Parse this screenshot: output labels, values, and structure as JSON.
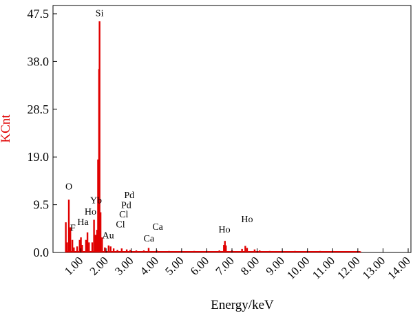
{
  "chart_data": {
    "type": "bar",
    "title": "",
    "xlabel": "Energy/keV",
    "ylabel": "KCnt",
    "xlim": [
      0.0,
      14.0
    ],
    "ylim": [
      0.0,
      47.5
    ],
    "x_ticks": [
      "1.00",
      "2.00",
      "3.00",
      "4.00",
      "5.00",
      "6.00",
      "7.00",
      "8.00",
      "9.00",
      "10.00",
      "11.00",
      "12.00",
      "13.00",
      "14.00"
    ],
    "y_ticks": [
      "0.0",
      "9.5",
      "19.0",
      "28.5",
      "38.0",
      "47.5"
    ],
    "series_color": "#e00000",
    "spectrum": [
      {
        "x": 0.4,
        "y": 6.0
      },
      {
        "x": 0.45,
        "y": 2.0
      },
      {
        "x": 0.52,
        "y": 10.5
      },
      {
        "x": 0.58,
        "y": 5.0
      },
      {
        "x": 0.66,
        "y": 2.5
      },
      {
        "x": 0.72,
        "y": 1.0
      },
      {
        "x": 0.85,
        "y": 1.2
      },
      {
        "x": 0.95,
        "y": 2.5
      },
      {
        "x": 1.0,
        "y": 3.0
      },
      {
        "x": 1.05,
        "y": 1.5
      },
      {
        "x": 1.2,
        "y": 2.5
      },
      {
        "x": 1.26,
        "y": 4.0
      },
      {
        "x": 1.32,
        "y": 2.0
      },
      {
        "x": 1.45,
        "y": 2.0
      },
      {
        "x": 1.52,
        "y": 6.5
      },
      {
        "x": 1.58,
        "y": 3.5
      },
      {
        "x": 1.64,
        "y": 4.5
      },
      {
        "x": 1.68,
        "y": 18.5
      },
      {
        "x": 1.72,
        "y": 36.5
      },
      {
        "x": 1.74,
        "y": 46.0
      },
      {
        "x": 1.78,
        "y": 8.0
      },
      {
        "x": 1.84,
        "y": 3.0
      },
      {
        "x": 1.95,
        "y": 1.0
      },
      {
        "x": 2.1,
        "y": 1.4
      },
      {
        "x": 2.18,
        "y": 1.2
      },
      {
        "x": 2.3,
        "y": 0.8
      },
      {
        "x": 2.45,
        "y": 0.5
      },
      {
        "x": 2.62,
        "y": 0.8
      },
      {
        "x": 2.82,
        "y": 0.6
      },
      {
        "x": 2.96,
        "y": 0.5
      },
      {
        "x": 3.2,
        "y": 0.4
      },
      {
        "x": 3.5,
        "y": 0.4
      },
      {
        "x": 3.69,
        "y": 0.9
      },
      {
        "x": 4.01,
        "y": 0.4
      },
      {
        "x": 4.5,
        "y": 0.3
      },
      {
        "x": 5.0,
        "y": 0.3
      },
      {
        "x": 5.5,
        "y": 0.3
      },
      {
        "x": 6.0,
        "y": 0.3
      },
      {
        "x": 6.5,
        "y": 0.4
      },
      {
        "x": 6.68,
        "y": 1.5
      },
      {
        "x": 6.72,
        "y": 2.3
      },
      {
        "x": 6.76,
        "y": 1.4
      },
      {
        "x": 7.0,
        "y": 0.4
      },
      {
        "x": 7.4,
        "y": 0.7
      },
      {
        "x": 7.53,
        "y": 1.3
      },
      {
        "x": 7.6,
        "y": 0.9
      },
      {
        "x": 7.9,
        "y": 0.6
      },
      {
        "x": 8.1,
        "y": 0.4
      },
      {
        "x": 8.5,
        "y": 0.3
      },
      {
        "x": 9.0,
        "y": 0.3
      },
      {
        "x": 9.5,
        "y": 0.3
      },
      {
        "x": 10.0,
        "y": 0.3
      },
      {
        "x": 10.5,
        "y": 0.3
      },
      {
        "x": 11.0,
        "y": 0.3
      },
      {
        "x": 11.5,
        "y": 0.25
      },
      {
        "x": 12.0,
        "y": 0.25
      },
      {
        "x": 12.1,
        "y": 0.2
      }
    ],
    "annotations": [
      {
        "text": "Si",
        "x": 1.74,
        "y": 47.0
      },
      {
        "text": "O",
        "x": 0.52,
        "y": 12.5
      },
      {
        "text": "F",
        "x": 0.68,
        "y": 4.3
      },
      {
        "text": "Ha",
        "x": 1.08,
        "y": 5.5
      },
      {
        "text": "Ho",
        "x": 1.38,
        "y": 7.5
      },
      {
        "text": "Yb",
        "x": 1.6,
        "y": 9.8
      },
      {
        "text": "Pd",
        "x": 2.92,
        "y": 10.8
      },
      {
        "text": "Pd",
        "x": 2.8,
        "y": 8.8
      },
      {
        "text": "Cl",
        "x": 2.7,
        "y": 7.0
      },
      {
        "text": "Cl",
        "x": 2.57,
        "y": 5.0
      },
      {
        "text": "Au",
        "x": 2.08,
        "y": 2.8
      },
      {
        "text": "Ca",
        "x": 4.05,
        "y": 4.5
      },
      {
        "text": "Ca",
        "x": 3.7,
        "y": 2.2
      },
      {
        "text": "Ho",
        "x": 6.7,
        "y": 4.0
      },
      {
        "text": "Ho",
        "x": 7.6,
        "y": 6.0
      }
    ]
  }
}
